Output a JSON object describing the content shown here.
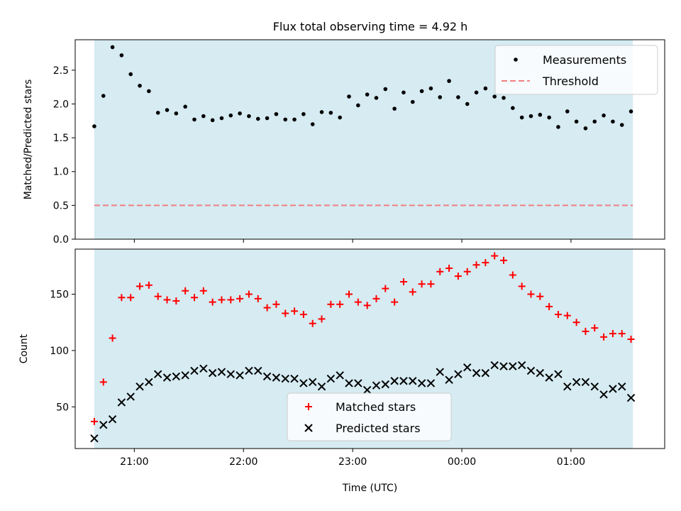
{
  "figure": {
    "title": "Flux total observing time = 4.92 h"
  },
  "chart_data": [
    {
      "type": "scatter",
      "title": "Flux total observing time = 4.92 h",
      "xlabel": "",
      "ylabel": "Matched/Predicted stars",
      "x_tick_labels": [
        "21:00",
        "22:00",
        "23:00",
        "00:00",
        "01:00"
      ],
      "y_ticks": [
        0.0,
        0.5,
        1.0,
        1.5,
        2.0,
        2.5
      ],
      "y_tick_labels": [
        "0.0",
        "0.5",
        "1.0",
        "1.5",
        "2.0",
        "2.5"
      ],
      "ylim": [
        0.0,
        2.95
      ],
      "shaded_region": {
        "color": "#add8e6",
        "alpha": 0.5,
        "from": "20:38",
        "to": "01:34"
      },
      "legend": {
        "placement": "top-right",
        "entries": [
          "Measurements",
          "Threshold"
        ]
      },
      "series": [
        {
          "name": "Measurements",
          "marker": "dot",
          "color": "#000000",
          "x": [
            "20:38",
            "20:43",
            "20:48",
            "20:53",
            "20:58",
            "21:03",
            "21:08",
            "21:13",
            "21:18",
            "21:23",
            "21:28",
            "21:33",
            "21:38",
            "21:43",
            "21:48",
            "21:53",
            "21:58",
            "22:03",
            "22:08",
            "22:13",
            "22:18",
            "22:23",
            "22:28",
            "22:33",
            "22:38",
            "22:43",
            "22:48",
            "22:53",
            "22:58",
            "23:03",
            "23:08",
            "23:13",
            "23:18",
            "23:23",
            "23:28",
            "23:33",
            "23:38",
            "23:43",
            "23:48",
            "23:53",
            "23:58",
            "00:03",
            "00:08",
            "00:13",
            "00:18",
            "00:23",
            "00:28",
            "00:33",
            "00:38",
            "00:43",
            "00:48",
            "00:53",
            "00:58",
            "01:03",
            "01:08",
            "01:13",
            "01:18",
            "01:23",
            "01:28",
            "01:33"
          ],
          "y": [
            1.67,
            2.12,
            2.84,
            2.72,
            2.44,
            2.27,
            2.19,
            1.87,
            1.91,
            1.86,
            1.96,
            1.77,
            1.82,
            1.76,
            1.79,
            1.83,
            1.86,
            1.82,
            1.78,
            1.79,
            1.85,
            1.77,
            1.77,
            1.85,
            1.7,
            1.88,
            1.87,
            1.8,
            2.11,
            1.98,
            2.14,
            2.09,
            2.22,
            1.93,
            2.17,
            2.03,
            2.19,
            2.23,
            2.1,
            2.34,
            2.1,
            2.0,
            2.17,
            2.23,
            2.11,
            2.09,
            1.94,
            1.8,
            1.82,
            1.84,
            1.8,
            1.66,
            1.89,
            1.74,
            1.64,
            1.74,
            1.83,
            1.74,
            1.69,
            1.89
          ]
        },
        {
          "name": "Threshold",
          "marker": "dashed-line",
          "color": "#f08080",
          "y": 0.5
        }
      ]
    },
    {
      "type": "scatter",
      "title": "",
      "xlabel": "Time (UTC)",
      "ylabel": "Count",
      "x_tick_labels": [
        "21:00",
        "22:00",
        "23:00",
        "00:00",
        "01:00"
      ],
      "y_ticks": [
        50,
        100,
        150
      ],
      "y_tick_labels": [
        "50",
        "100",
        "150"
      ],
      "ylim": [
        13,
        190
      ],
      "shaded_region": {
        "color": "#add8e6",
        "alpha": 0.5,
        "from": "20:38",
        "to": "01:34"
      },
      "legend": {
        "placement": "lower-center",
        "entries": [
          "Matched stars",
          "Predicted stars"
        ]
      },
      "series": [
        {
          "name": "Matched stars",
          "marker": "plus",
          "color": "#ff0000",
          "x": [
            "20:38",
            "20:43",
            "20:48",
            "20:53",
            "20:58",
            "21:03",
            "21:08",
            "21:13",
            "21:18",
            "21:23",
            "21:28",
            "21:33",
            "21:38",
            "21:43",
            "21:48",
            "21:53",
            "21:58",
            "22:03",
            "22:08",
            "22:13",
            "22:18",
            "22:23",
            "22:28",
            "22:33",
            "22:38",
            "22:43",
            "22:48",
            "22:53",
            "22:58",
            "23:03",
            "23:08",
            "23:13",
            "23:18",
            "23:23",
            "23:28",
            "23:33",
            "23:38",
            "23:43",
            "23:48",
            "23:53",
            "23:58",
            "00:03",
            "00:08",
            "00:13",
            "00:18",
            "00:23",
            "00:28",
            "00:33",
            "00:38",
            "00:43",
            "00:48",
            "00:53",
            "00:58",
            "01:03",
            "01:08",
            "01:13",
            "01:18",
            "01:23",
            "01:28",
            "01:33"
          ],
          "y": [
            37,
            72,
            111,
            147,
            147,
            157,
            158,
            148,
            145,
            144,
            153,
            147,
            153,
            143,
            145,
            145,
            146,
            150,
            146,
            138,
            141,
            133,
            135,
            132,
            124,
            128,
            141,
            141,
            150,
            143,
            140,
            146,
            155,
            143,
            161,
            152,
            159,
            159,
            170,
            173,
            166,
            170,
            176,
            178,
            184,
            180,
            167,
            157,
            150,
            148,
            139,
            132,
            131,
            125,
            117,
            120,
            112,
            115,
            115,
            110
          ]
        },
        {
          "name": "Predicted stars",
          "marker": "x",
          "color": "#000000",
          "x": [
            "20:38",
            "20:43",
            "20:48",
            "20:53",
            "20:58",
            "21:03",
            "21:08",
            "21:13",
            "21:18",
            "21:23",
            "21:28",
            "21:33",
            "21:38",
            "21:43",
            "21:48",
            "21:53",
            "21:58",
            "22:03",
            "22:08",
            "22:13",
            "22:18",
            "22:23",
            "22:28",
            "22:33",
            "22:38",
            "22:43",
            "22:48",
            "22:53",
            "22:58",
            "23:03",
            "23:08",
            "23:13",
            "23:18",
            "23:23",
            "23:28",
            "23:33",
            "23:38",
            "23:43",
            "23:48",
            "23:53",
            "23:58",
            "00:03",
            "00:08",
            "00:13",
            "00:18",
            "00:23",
            "00:28",
            "00:33",
            "00:38",
            "00:43",
            "00:48",
            "00:53",
            "00:58",
            "01:03",
            "01:08",
            "01:13",
            "01:18",
            "01:23",
            "01:28",
            "01:33"
          ],
          "y": [
            22,
            34,
            39,
            54,
            59,
            68,
            72,
            79,
            76,
            77,
            78,
            82,
            84,
            80,
            81,
            79,
            78,
            82,
            82,
            77,
            76,
            75,
            75,
            71,
            72,
            68,
            75,
            78,
            71,
            71,
            65,
            69,
            70,
            73,
            73,
            73,
            71,
            71,
            81,
            74,
            79,
            85,
            80,
            80,
            87,
            86,
            86,
            87,
            82,
            80,
            76,
            79,
            68,
            72,
            72,
            68,
            61,
            66,
            68,
            58
          ]
        }
      ]
    }
  ]
}
